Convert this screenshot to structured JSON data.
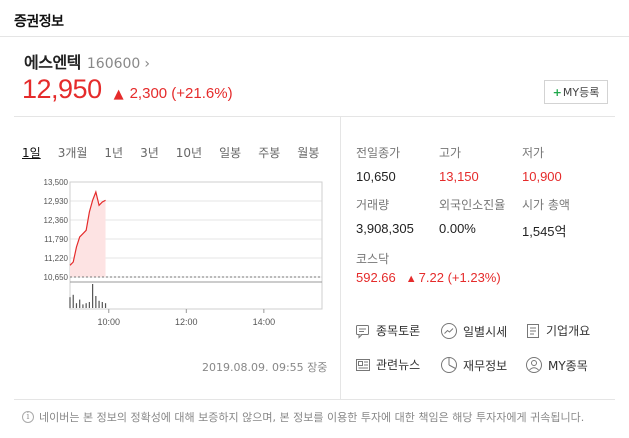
{
  "section_title": "증권정보",
  "stock": {
    "name": "에스엔텍",
    "code": "160600",
    "price": "12,950",
    "change": "2,300 (+21.6%)",
    "my_button_plus": "+",
    "my_button_label": "MY등록"
  },
  "period_tabs": [
    "1일",
    "3개월",
    "1년",
    "3년",
    "10년",
    "일봉",
    "주봉",
    "월봉"
  ],
  "active_period": "1일",
  "chart_data": {
    "type": "line",
    "y_tick_labels": [
      "13,500",
      "12,930",
      "12,360",
      "11,790",
      "11,220",
      "10,650"
    ],
    "ylim": [
      10650,
      13500
    ],
    "x_tick_labels": [
      "10:00",
      "12:00",
      "14:00"
    ],
    "x": [
      "09:00",
      "09:05",
      "09:10",
      "09:15",
      "09:20",
      "09:25",
      "09:30",
      "09:35",
      "09:40",
      "09:45",
      "09:50",
      "09:55"
    ],
    "series": [
      {
        "values": [
          11000,
          11100,
          11550,
          11850,
          11950,
          12050,
          12600,
          12950,
          13200,
          12800,
          12900,
          12950
        ]
      }
    ],
    "volume": [
      0.45,
      0.55,
      0.2,
      0.35,
      0.15,
      0.2,
      0.25,
      1.0,
      0.5,
      0.3,
      0.25,
      0.2
    ],
    "previous_close": 10650,
    "colors": {
      "line": "#e52b2b",
      "fill": "#fde3e3",
      "volume": "#555555",
      "prev_close": "#777777"
    }
  },
  "timestamp": "2019.08.09. 09:55 장중",
  "info": {
    "prev_close_label": "전일종가",
    "prev_close_value": "10,650",
    "high_label": "고가",
    "high_value": "13,150",
    "low_label": "저가",
    "low_value": "10,900",
    "volume_label": "거래량",
    "volume_value": "3,908,305",
    "foreign_label": "외국인소진율",
    "foreign_value": "0.00%",
    "cap_label": "시가 총액",
    "cap_value": "1,545억"
  },
  "kospi": {
    "label": "코스닥",
    "value": "592.66",
    "change": "7.22 (+1.23%)"
  },
  "links": [
    {
      "label": "종목토론",
      "icon": "discussion-icon"
    },
    {
      "label": "일별시세",
      "icon": "trend-icon"
    },
    {
      "label": "기업개요",
      "icon": "document-icon"
    },
    {
      "label": "관련뉴스",
      "icon": "news-icon"
    },
    {
      "label": "재무정보",
      "icon": "pie-icon"
    },
    {
      "label": "MY종목",
      "icon": "person-icon"
    }
  ],
  "footer": "네이버는 본 정보의 정확성에 대해 보증하지 않으며, 본 정보를 이용한 투자에 대한 책임은 해당 투자자에게 귀속됩니다.",
  "colors": {
    "up": "#e52b2b",
    "accent_green": "#1fa84b"
  }
}
